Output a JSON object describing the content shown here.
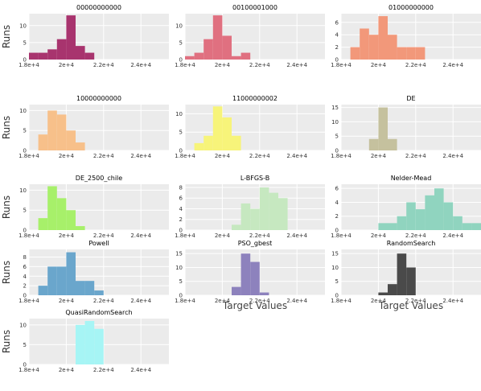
{
  "figure": {
    "y_axis_label": "Runs",
    "x_axis_label": "Target Values"
  },
  "chart_data": [
    {
      "type": "bar",
      "title": "00000000000",
      "color": "#a8346e",
      "xlim": [
        18000,
        25500
      ],
      "x_ticks": [
        "1.8e+4",
        "2e+4",
        "2.2e+4",
        "2.4e+4"
      ],
      "y_ticks": [
        0,
        5,
        10
      ],
      "ylim": [
        0,
        13.5
      ],
      "bins": [
        {
          "x0": 18000,
          "x1": 18500,
          "v": 2
        },
        {
          "x0": 18500,
          "x1": 19000,
          "v": 2
        },
        {
          "x0": 19000,
          "x1": 19500,
          "v": 3
        },
        {
          "x0": 19500,
          "x1": 20000,
          "v": 6
        },
        {
          "x0": 20000,
          "x1": 20500,
          "v": 13
        },
        {
          "x0": 20500,
          "x1": 21000,
          "v": 4
        },
        {
          "x0": 21000,
          "x1": 21500,
          "v": 2
        }
      ]
    },
    {
      "type": "bar",
      "title": "00100001000",
      "color": "#e07080",
      "xlim": [
        18000,
        25500
      ],
      "x_ticks": [
        "1.8e+4",
        "2e+4",
        "2.2e+4",
        "2.4e+4"
      ],
      "y_ticks": [
        0,
        5,
        10
      ],
      "ylim": [
        0,
        13.5
      ],
      "bins": [
        {
          "x0": 18000,
          "x1": 18500,
          "v": 1
        },
        {
          "x0": 18500,
          "x1": 19000,
          "v": 2
        },
        {
          "x0": 19000,
          "x1": 19500,
          "v": 6
        },
        {
          "x0": 19500,
          "x1": 20000,
          "v": 13
        },
        {
          "x0": 20000,
          "x1": 20500,
          "v": 7
        },
        {
          "x0": 20500,
          "x1": 21000,
          "v": 1
        },
        {
          "x0": 21000,
          "x1": 21500,
          "v": 2
        }
      ]
    },
    {
      "type": "bar",
      "title": "01000000000",
      "color": "#f2987a",
      "xlim": [
        18000,
        25500
      ],
      "x_ticks": [
        "1.8e+4",
        "2e+4",
        "2.2e+4",
        "2.4e+4"
      ],
      "y_ticks": [
        0,
        2,
        4,
        6
      ],
      "ylim": [
        0,
        7.4
      ],
      "bins": [
        {
          "x0": 18500,
          "x1": 19000,
          "v": 2
        },
        {
          "x0": 19000,
          "x1": 19500,
          "v": 5
        },
        {
          "x0": 19500,
          "x1": 20000,
          "v": 4
        },
        {
          "x0": 20000,
          "x1": 20500,
          "v": 7
        },
        {
          "x0": 20500,
          "x1": 21000,
          "v": 4
        },
        {
          "x0": 21000,
          "x1": 21500,
          "v": 2
        },
        {
          "x0": 21500,
          "x1": 22000,
          "v": 2
        },
        {
          "x0": 22000,
          "x1": 22500,
          "v": 2
        }
      ]
    },
    {
      "type": "bar",
      "title": "10000000000",
      "color": "#f7c08a",
      "xlim": [
        18000,
        25500
      ],
      "x_ticks": [
        "1.8e+4",
        "2e+4",
        "2.2e+4",
        "2.4e+4"
      ],
      "y_ticks": [
        0,
        5,
        10
      ],
      "ylim": [
        0,
        11.5
      ],
      "bins": [
        {
          "x0": 18500,
          "x1": 19000,
          "v": 4
        },
        {
          "x0": 19000,
          "x1": 19500,
          "v": 10
        },
        {
          "x0": 19500,
          "x1": 20000,
          "v": 9
        },
        {
          "x0": 20000,
          "x1": 20500,
          "v": 5
        },
        {
          "x0": 20500,
          "x1": 21000,
          "v": 2
        }
      ]
    },
    {
      "type": "bar",
      "title": "11000000002",
      "color": "#f7f47a",
      "xlim": [
        18000,
        25500
      ],
      "x_ticks": [
        "1.8e+4",
        "2e+4",
        "2.2e+4",
        "2.4e+4"
      ],
      "y_ticks": [
        0,
        5,
        10
      ],
      "ylim": [
        0,
        12.5
      ],
      "bins": [
        {
          "x0": 18500,
          "x1": 19000,
          "v": 2
        },
        {
          "x0": 19000,
          "x1": 19500,
          "v": 4
        },
        {
          "x0": 19500,
          "x1": 20000,
          "v": 12
        },
        {
          "x0": 20000,
          "x1": 20500,
          "v": 9
        },
        {
          "x0": 20500,
          "x1": 21000,
          "v": 4
        }
      ]
    },
    {
      "type": "bar",
      "title": "DE",
      "color": "#c5c19e",
      "xlim": [
        18000,
        25500
      ],
      "x_ticks": [
        "1.8e+4",
        "2e+4",
        "2.2e+4",
        "2.4e+4"
      ],
      "y_ticks": [
        0,
        5,
        10,
        15
      ],
      "ylim": [
        0,
        16
      ],
      "bins": [
        {
          "x0": 19500,
          "x1": 20000,
          "v": 4
        },
        {
          "x0": 20000,
          "x1": 20500,
          "v": 15
        },
        {
          "x0": 20500,
          "x1": 21000,
          "v": 4
        }
      ]
    },
    {
      "type": "bar",
      "title": "DE_2500_chile",
      "color": "#a7f06a",
      "xlim": [
        18000,
        25500
      ],
      "x_ticks": [
        "1.8e+4",
        "2e+4",
        "2.2e+4",
        "2.4e+4"
      ],
      "y_ticks": [
        0,
        5,
        10
      ],
      "ylim": [
        0,
        11.5
      ],
      "bins": [
        {
          "x0": 18500,
          "x1": 19000,
          "v": 3
        },
        {
          "x0": 19000,
          "x1": 19500,
          "v": 11
        },
        {
          "x0": 19500,
          "x1": 20000,
          "v": 8
        },
        {
          "x0": 20000,
          "x1": 20500,
          "v": 5
        },
        {
          "x0": 20500,
          "x1": 21000,
          "v": 1
        }
      ]
    },
    {
      "type": "bar",
      "title": "L-BFGS-B",
      "color": "#c6e8c0",
      "xlim": [
        18000,
        25500
      ],
      "x_ticks": [
        "1.8e+4",
        "2e+4",
        "2.2e+4",
        "2.4e+4"
      ],
      "y_ticks": [
        0,
        2,
        4,
        6,
        8
      ],
      "ylim": [
        0,
        8.6
      ],
      "bins": [
        {
          "x0": 20500,
          "x1": 21000,
          "v": 1
        },
        {
          "x0": 21000,
          "x1": 21500,
          "v": 5
        },
        {
          "x0": 21500,
          "x1": 22000,
          "v": 4
        },
        {
          "x0": 22000,
          "x1": 22500,
          "v": 8
        },
        {
          "x0": 22500,
          "x1": 23000,
          "v": 7
        },
        {
          "x0": 23000,
          "x1": 23500,
          "v": 6
        }
      ]
    },
    {
      "type": "bar",
      "title": "Nelder-Mead",
      "color": "#90d4bf",
      "xlim": [
        18000,
        25500
      ],
      "x_ticks": [
        "1.8e+4",
        "2e+4",
        "2.2e+4",
        "2.4e+4"
      ],
      "y_ticks": [
        0,
        2,
        4,
        6
      ],
      "ylim": [
        0,
        6.6
      ],
      "bins": [
        {
          "x0": 20000,
          "x1": 20500,
          "v": 1
        },
        {
          "x0": 20500,
          "x1": 21000,
          "v": 1
        },
        {
          "x0": 21000,
          "x1": 21500,
          "v": 2
        },
        {
          "x0": 21500,
          "x1": 22000,
          "v": 4
        },
        {
          "x0": 22000,
          "x1": 22500,
          "v": 3
        },
        {
          "x0": 22500,
          "x1": 23000,
          "v": 5
        },
        {
          "x0": 23000,
          "x1": 23500,
          "v": 6
        },
        {
          "x0": 23500,
          "x1": 24000,
          "v": 4
        },
        {
          "x0": 24000,
          "x1": 24500,
          "v": 2
        },
        {
          "x0": 24500,
          "x1": 25000,
          "v": 1
        },
        {
          "x0": 25000,
          "x1": 25500,
          "v": 1
        }
      ]
    },
    {
      "type": "bar",
      "title": "Powell",
      "color": "#6aa6cc",
      "xlim": [
        18000,
        25500
      ],
      "x_ticks": [
        "1.8e+4",
        "2e+4",
        "2.2e+4",
        "2.4e+4"
      ],
      "y_ticks": [
        0,
        2,
        4,
        6,
        8
      ],
      "ylim": [
        0,
        9.6
      ],
      "bins": [
        {
          "x0": 18500,
          "x1": 19000,
          "v": 2
        },
        {
          "x0": 19000,
          "x1": 19500,
          "v": 6
        },
        {
          "x0": 19500,
          "x1": 20000,
          "v": 6
        },
        {
          "x0": 20000,
          "x1": 20500,
          "v": 9
        },
        {
          "x0": 20500,
          "x1": 21000,
          "v": 3
        },
        {
          "x0": 21000,
          "x1": 21500,
          "v": 3
        },
        {
          "x0": 21500,
          "x1": 22000,
          "v": 1
        }
      ]
    },
    {
      "type": "bar",
      "title": "PSO_gbest",
      "color": "#8d82bd",
      "xlim": [
        18000,
        25500
      ],
      "x_ticks": [
        "1.8e+4",
        "2e+4",
        "2.2e+4",
        "2.4e+4"
      ],
      "y_ticks": [
        0,
        5,
        10,
        15
      ],
      "ylim": [
        0,
        16.5
      ],
      "bins": [
        {
          "x0": 20500,
          "x1": 21000,
          "v": 3
        },
        {
          "x0": 21000,
          "x1": 21500,
          "v": 15
        },
        {
          "x0": 21500,
          "x1": 22000,
          "v": 12
        },
        {
          "x0": 22000,
          "x1": 22500,
          "v": 1
        }
      ]
    },
    {
      "type": "bar",
      "title": "RandomSearch",
      "color": "#4a4a4a",
      "xlim": [
        18000,
        25500
      ],
      "x_ticks": [
        "1.8e+4",
        "2e+4",
        "2.2e+4",
        "2.4e+4"
      ],
      "y_ticks": [
        0,
        5,
        10,
        15
      ],
      "ylim": [
        0,
        16.5
      ],
      "bins": [
        {
          "x0": 20000,
          "x1": 20500,
          "v": 1
        },
        {
          "x0": 20500,
          "x1": 21000,
          "v": 4
        },
        {
          "x0": 21000,
          "x1": 21500,
          "v": 15
        },
        {
          "x0": 21500,
          "x1": 22000,
          "v": 10
        }
      ]
    },
    {
      "type": "bar",
      "title": "QuasiRandomSearch",
      "color": "#a6f5f5",
      "xlim": [
        18000,
        25500
      ],
      "x_ticks": [
        "1.8e+4",
        "2e+4",
        "2.2e+4",
        "2.4e+4"
      ],
      "y_ticks": [
        0,
        5,
        10
      ],
      "ylim": [
        0,
        11.6
      ],
      "bins": [
        {
          "x0": 20500,
          "x1": 21000,
          "v": 10
        },
        {
          "x0": 21000,
          "x1": 21500,
          "v": 11
        },
        {
          "x0": 21500,
          "x1": 22000,
          "v": 9
        }
      ]
    }
  ]
}
